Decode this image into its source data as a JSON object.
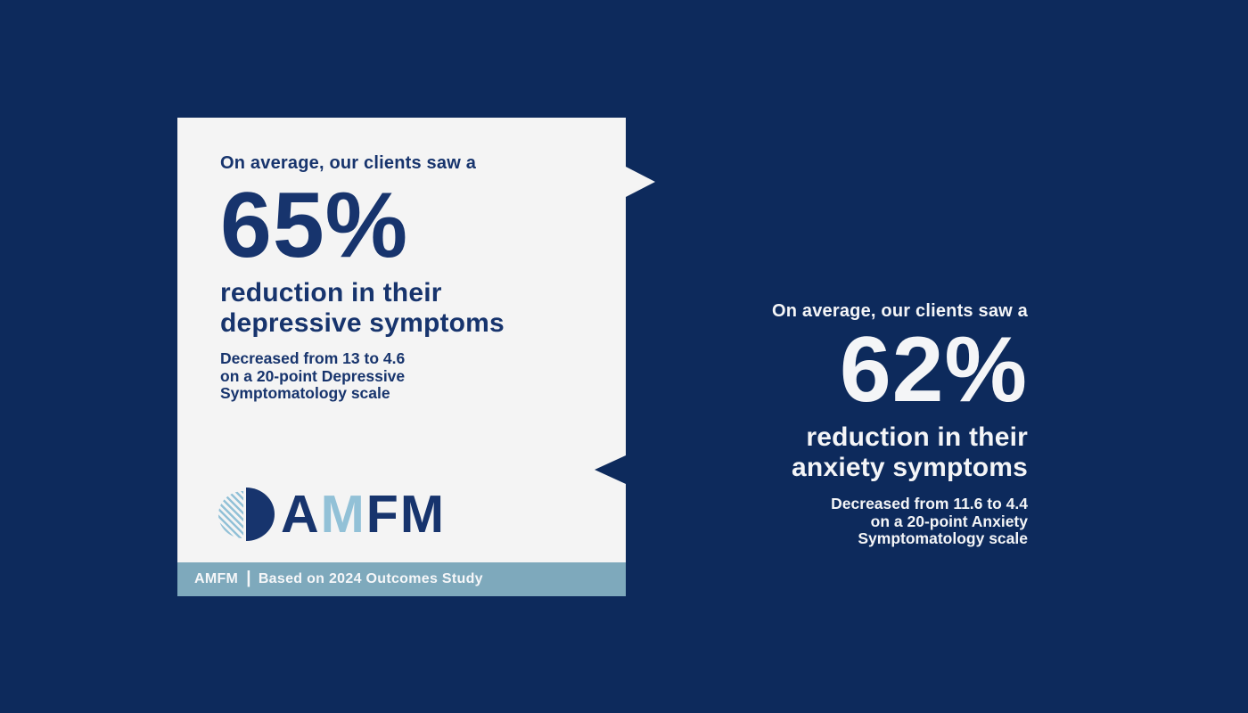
{
  "colors": {
    "background": "#0d2a5c",
    "card_background": "#f4f4f4",
    "navy_text": "#17346d",
    "footer_bar": "#7ea9bc",
    "logo_light_blue": "#92c1d7",
    "light_text": "#f4f5f7"
  },
  "left_card": {
    "intro": "On average, our clients saw a",
    "stat_value": "65%",
    "headline_line1": "reduction in their",
    "headline_line2": "depressive symptoms",
    "detail": {
      "prefix": "Decreased from ",
      "from_value": "13",
      "connector": " to ",
      "to_value": "4.6",
      "line2": "on a 20-point Depressive",
      "line3": "Symptomatology scale"
    },
    "logo": {
      "letter1": "A",
      "letter2": "M",
      "letter3": "F",
      "letter4": "M"
    },
    "footer": {
      "brand": "AMFM",
      "divider": "|",
      "caption": "Based on 2024 Outcomes Study"
    }
  },
  "right_panel": {
    "intro": "On average, our clients saw a",
    "stat_value": "62%",
    "headline_line1": "reduction in their",
    "headline_line2": "anxiety symptoms",
    "detail": {
      "prefix": "Decreased from ",
      "from_value": "11.6",
      "connector": " to ",
      "to_value": "4.4",
      "line2": "on a 20-point Anxiety",
      "line3": "Symptomatology scale"
    }
  }
}
